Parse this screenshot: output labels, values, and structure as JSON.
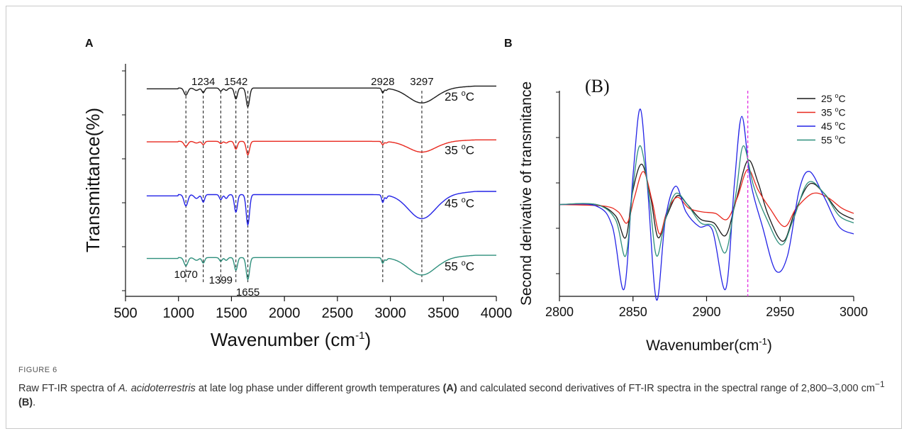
{
  "figure": {
    "label": "FIGURE 6",
    "caption_parts": [
      {
        "t": "Raw FT-IR spectra of ",
        "s": "n"
      },
      {
        "t": "A. acidoterrestris",
        "s": "i"
      },
      {
        "t": " at late log phase under different growth temperatures ",
        "s": "n"
      },
      {
        "t": "(A)",
        "s": "b"
      },
      {
        "t": " and calculated second derivatives of FT-IR spectra in the spectral range of 2,800–3,000 cm",
        "s": "n"
      },
      {
        "t": "−1",
        "s": "sup"
      },
      {
        "t": " ",
        "s": "n"
      },
      {
        "t": "(B)",
        "s": "b"
      },
      {
        "t": ".",
        "s": "n"
      }
    ]
  },
  "colors": {
    "black": "#1a1a1a",
    "red": "#e8281e",
    "blue": "#2323e6",
    "teal": "#2e8f7c",
    "magenta": "#e23be2"
  },
  "chart_data": [
    {
      "panel": "A",
      "type": "line",
      "xlabel": "Wavenumber (cm",
      "xlabel_sup": "-1",
      "xlabel_end": ")",
      "ylabel": "Transmittance(%)",
      "xlim": [
        500,
        4000
      ],
      "xticks": [
        500,
        1000,
        1500,
        2000,
        2500,
        3000,
        3500,
        4000
      ],
      "peaks_top": [
        {
          "x": 1234,
          "label": "1234"
        },
        {
          "x": 1542,
          "label": "1542"
        },
        {
          "x": 2928,
          "label": "2928"
        },
        {
          "x": 3297,
          "label": "3297"
        }
      ],
      "peaks_bottom": [
        {
          "x": 1070,
          "label": "1070"
        },
        {
          "x": 1399,
          "label": "1399"
        },
        {
          "x": 1655,
          "label": "1655"
        }
      ],
      "marker_lines": [
        1070,
        1234,
        1399,
        1542,
        1655,
        2928,
        3297
      ],
      "series": [
        {
          "name": "25",
          "unit": "°C",
          "color_key": "black",
          "offset": 4.3,
          "scale": 0.9
        },
        {
          "name": "35",
          "unit": "°C",
          "color_key": "red",
          "offset": 3.2,
          "scale": 0.65
        },
        {
          "name": "45",
          "unit": "°C",
          "color_key": "blue",
          "offset": 2.1,
          "scale": 1.45
        },
        {
          "name": "55",
          "unit": "°C",
          "color_key": "teal",
          "offset": 0.8,
          "scale": 1.05
        }
      ],
      "ylim": [
        0,
        4.8
      ]
    },
    {
      "panel": "B",
      "inner_title": "(B)",
      "type": "line",
      "xlabel": "Wavenumber(cm",
      "xlabel_sup": "-1",
      "xlabel_end": ")",
      "ylabel": "Second derivative of transmitance",
      "xlim": [
        2800,
        3000
      ],
      "xticks": [
        2800,
        2850,
        2900,
        2950,
        3000
      ],
      "ylim": [
        -1.25,
        1.55
      ],
      "vline": 2928,
      "legend_position": "top-right",
      "series": [
        {
          "name": "25",
          "unit": "°C",
          "color_key": "black",
          "amp": 0.55,
          "points": [
            [
              2800,
              0
            ],
            [
              2825,
              0
            ],
            [
              2838,
              -0.15
            ],
            [
              2845,
              -0.45
            ],
            [
              2850,
              0.2
            ],
            [
              2856,
              0.55
            ],
            [
              2862,
              0.1
            ],
            [
              2867,
              -0.45
            ],
            [
              2873,
              -0.15
            ],
            [
              2880,
              0.12
            ],
            [
              2887,
              0.0
            ],
            [
              2896,
              -0.2
            ],
            [
              2905,
              -0.25
            ],
            [
              2913,
              -0.42
            ],
            [
              2920,
              0.05
            ],
            [
              2928,
              0.6
            ],
            [
              2935,
              0.3
            ],
            [
              2942,
              -0.15
            ],
            [
              2952,
              -0.5
            ],
            [
              2960,
              -0.1
            ],
            [
              2970,
              0.28
            ],
            [
              2980,
              0.15
            ],
            [
              2990,
              -0.1
            ],
            [
              3000,
              -0.2
            ]
          ]
        },
        {
          "name": "35",
          "unit": "°C",
          "color_key": "red",
          "amp": 0.45,
          "points": [
            [
              2800,
              0
            ],
            [
              2830,
              -0.02
            ],
            [
              2840,
              -0.1
            ],
            [
              2846,
              -0.25
            ],
            [
              2851,
              0.1
            ],
            [
              2857,
              0.45
            ],
            [
              2863,
              0.05
            ],
            [
              2868,
              -0.4
            ],
            [
              2873,
              -0.1
            ],
            [
              2880,
              0.1
            ],
            [
              2888,
              -0.05
            ],
            [
              2897,
              -0.1
            ],
            [
              2906,
              -0.12
            ],
            [
              2914,
              -0.2
            ],
            [
              2921,
              0.1
            ],
            [
              2928,
              0.48
            ],
            [
              2935,
              0.2
            ],
            [
              2943,
              -0.05
            ],
            [
              2953,
              -0.3
            ],
            [
              2961,
              -0.05
            ],
            [
              2972,
              0.15
            ],
            [
              2982,
              0.1
            ],
            [
              2992,
              -0.05
            ],
            [
              3000,
              -0.12
            ]
          ]
        },
        {
          "name": "45",
          "unit": "°C",
          "color_key": "blue",
          "amp": 1.3,
          "points": [
            [
              2800,
              0
            ],
            [
              2825,
              -0.02
            ],
            [
              2836,
              -0.3
            ],
            [
              2844,
              -1.15
            ],
            [
              2850,
              0.4
            ],
            [
              2855,
              1.3
            ],
            [
              2860,
              0.2
            ],
            [
              2866,
              -1.3
            ],
            [
              2872,
              -0.2
            ],
            [
              2879,
              0.25
            ],
            [
              2886,
              -0.1
            ],
            [
              2895,
              -0.3
            ],
            [
              2904,
              -0.35
            ],
            [
              2913,
              -1.15
            ],
            [
              2919,
              0.3
            ],
            [
              2924,
              1.2
            ],
            [
              2930,
              0.3
            ],
            [
              2938,
              -0.3
            ],
            [
              2947,
              -0.9
            ],
            [
              2955,
              -0.7
            ],
            [
              2963,
              0.2
            ],
            [
              2970,
              0.45
            ],
            [
              2980,
              0.1
            ],
            [
              2990,
              -0.3
            ],
            [
              3000,
              -0.4
            ]
          ]
        },
        {
          "name": "55",
          "unit": "°C",
          "color_key": "teal",
          "amp": 0.8,
          "points": [
            [
              2800,
              0
            ],
            [
              2825,
              0
            ],
            [
              2838,
              -0.2
            ],
            [
              2845,
              -0.7
            ],
            [
              2850,
              0.25
            ],
            [
              2855,
              0.8
            ],
            [
              2861,
              0.1
            ],
            [
              2866,
              -0.7
            ],
            [
              2872,
              -0.2
            ],
            [
              2879,
              0.15
            ],
            [
              2887,
              0.0
            ],
            [
              2896,
              -0.25
            ],
            [
              2905,
              -0.3
            ],
            [
              2913,
              -0.65
            ],
            [
              2920,
              0.15
            ],
            [
              2925,
              0.8
            ],
            [
              2932,
              0.25
            ],
            [
              2941,
              -0.2
            ],
            [
              2951,
              -0.55
            ],
            [
              2959,
              -0.2
            ],
            [
              2969,
              0.3
            ],
            [
              2980,
              0.15
            ],
            [
              2990,
              -0.15
            ],
            [
              3000,
              -0.25
            ]
          ]
        }
      ]
    }
  ]
}
